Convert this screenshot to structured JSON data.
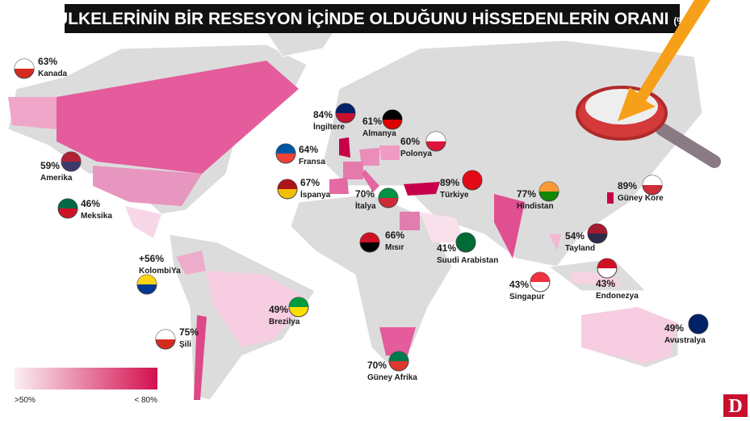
{
  "header": {
    "title": "ÜLKELERİNİN BİR RESESYON İÇİNDE OLDUĞUNU HİSSEDENLERİN ORANI",
    "unit": "(%)"
  },
  "countries": [
    {
      "value": "63%",
      "name": "Kanada"
    },
    {
      "value": "59%",
      "name": "Amerika"
    },
    {
      "value": "46%",
      "name": "Meksika"
    },
    {
      "value": "+56%",
      "name": "KolombiYa"
    },
    {
      "value": "49%",
      "name": "Brezilya"
    },
    {
      "value": "75%",
      "name": "Şili"
    },
    {
      "value": "84%",
      "name": "İngiltere"
    },
    {
      "value": "61%",
      "name": "Almanya"
    },
    {
      "value": "60%",
      "name": "Polonya"
    },
    {
      "value": "64%",
      "name": "Fransa"
    },
    {
      "value": "67%",
      "name": "İspanya"
    },
    {
      "value": "70%",
      "name": "İtalya"
    },
    {
      "value": "89%",
      "name": "Türkiye"
    },
    {
      "value": "66%",
      "name": "Mısır"
    },
    {
      "value": "41%",
      "name": "Suudi Arabistan"
    },
    {
      "value": "77%",
      "name": "Hindistan"
    },
    {
      "value": "89%",
      "name": "Güney Kore"
    },
    {
      "value": "54%",
      "name": "Tayland"
    },
    {
      "value": "43%",
      "name": "Singapur"
    },
    {
      "value": "43%",
      "name": "Endonezya"
    },
    {
      "value": "49%",
      "name": "Avustralya"
    },
    {
      "value": "70%",
      "name": "Güney Afrika"
    }
  ],
  "legend": {
    "min_label": ">50%",
    "max_label": "< 80%"
  }
}
